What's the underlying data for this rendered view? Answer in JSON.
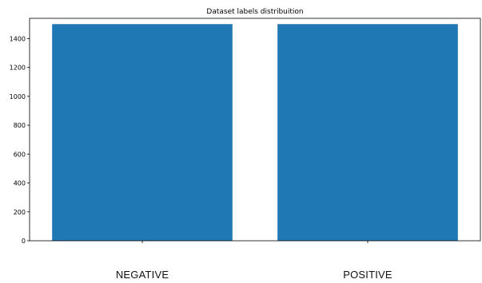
{
  "chart_data": {
    "type": "bar",
    "title": "Dataset labels distribuition",
    "xlabel": "",
    "ylabel": "",
    "categories": [
      "NEGATIVE",
      "POSITIVE"
    ],
    "values": [
      1500,
      1500
    ],
    "ylim": [
      0,
      1540
    ],
    "yticks": [
      0,
      200,
      400,
      600,
      800,
      1000,
      1200,
      1400
    ],
    "bar_color": "#1f77b4",
    "grid": false,
    "legend": "none"
  }
}
